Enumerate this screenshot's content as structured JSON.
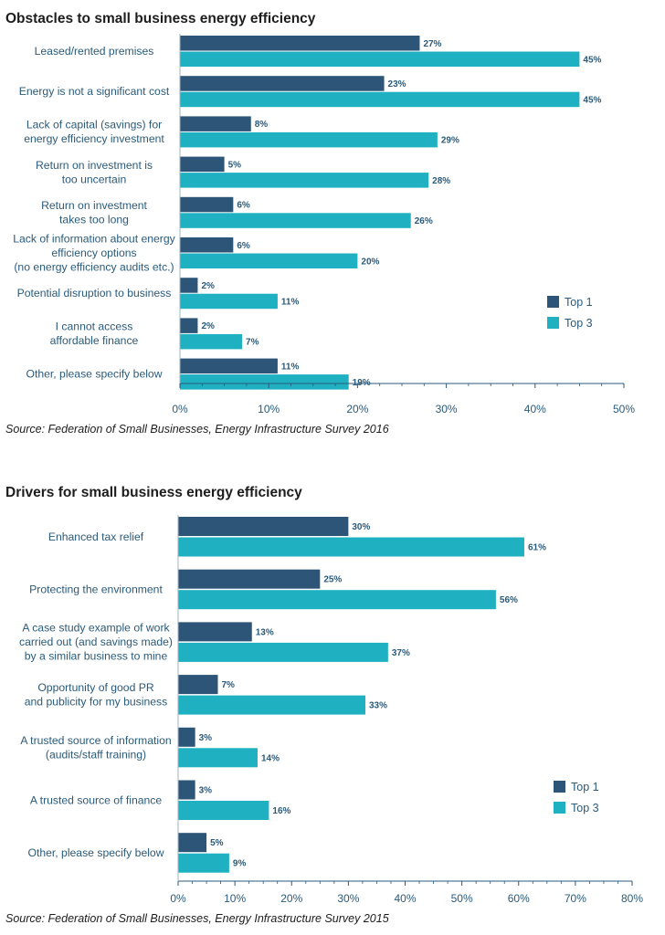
{
  "chart_data": [
    {
      "type": "bar",
      "orientation": "horizontal",
      "title": "Obstacles to small business energy efficiency",
      "categories": [
        "Leased/rented premises",
        "Energy is not a significant cost",
        "Lack of capital (savings) for\nenergy efficiency  investment",
        "Return on investment is\ntoo uncertain",
        "Return on investment\ntakes too long",
        "Lack of information about energy\nefficiency options\n(no energy efficiency audits etc.)",
        "Potential disruption to business",
        "I cannot access\naffordable finance",
        "Other, please specify below"
      ],
      "series": [
        {
          "name": "Top 1",
          "values": [
            27,
            23,
            8,
            5,
            6,
            6,
            2,
            2,
            11
          ],
          "labels": [
            "27%",
            "23%",
            "8%",
            "5%",
            "6%",
            "6%",
            "2%",
            "2%",
            "11%"
          ]
        },
        {
          "name": "Top 3",
          "values": [
            45,
            45,
            29,
            28,
            26,
            20,
            11,
            7,
            19
          ],
          "labels": [
            "45%",
            "45%",
            "29%",
            "28%",
            "26%",
            "20%",
            "11%",
            "7%",
            "19%"
          ]
        }
      ],
      "xlim": [
        0,
        50
      ],
      "xticks": [
        "0%",
        "10%",
        "20%",
        "30%",
        "40%",
        "50%"
      ],
      "xlabel": "",
      "ylabel": "",
      "legend": "right",
      "grid": false,
      "source": "Source: Federation of Small Businesses, Energy Infrastructure Survey 2016"
    },
    {
      "type": "bar",
      "orientation": "horizontal",
      "title": "Drivers for small business energy efficiency",
      "categories": [
        "Enhanced tax relief",
        "Protecting the environment",
        "A case study example of work\ncarried out (and savings made)\nby a similar business to mine",
        "Opportunity of good PR\nand publicity for my business",
        "A trusted source of information\n(audits/staff training)",
        "A trusted source of finance",
        "Other, please specify below"
      ],
      "series": [
        {
          "name": "Top 1",
          "values": [
            30,
            25,
            13,
            7,
            3,
            3,
            5
          ],
          "labels": [
            "30%",
            "25%",
            "13%",
            "7%",
            "3%",
            "3%",
            "5%"
          ]
        },
        {
          "name": "Top 3",
          "values": [
            61,
            56,
            37,
            33,
            14,
            16,
            9
          ],
          "labels": [
            "61%",
            "56%",
            "37%",
            "33%",
            "14%",
            "16%",
            "9%"
          ]
        }
      ],
      "xlim": [
        0,
        80
      ],
      "xticks": [
        "0%",
        "10%",
        "20%",
        "30%",
        "40%",
        "50%",
        "60%",
        "70%",
        "80%"
      ],
      "xlabel": "",
      "ylabel": "",
      "legend": "right",
      "grid": false,
      "source": "Source: Federation of Small Businesses, Energy Infrastructure Survey 2015"
    }
  ],
  "colors": {
    "top1": "#2c5578",
    "top3": "#1fb1c1",
    "axis": "#2a5a7c",
    "label": "#2a5a7c",
    "title": "#1d1d1d"
  }
}
